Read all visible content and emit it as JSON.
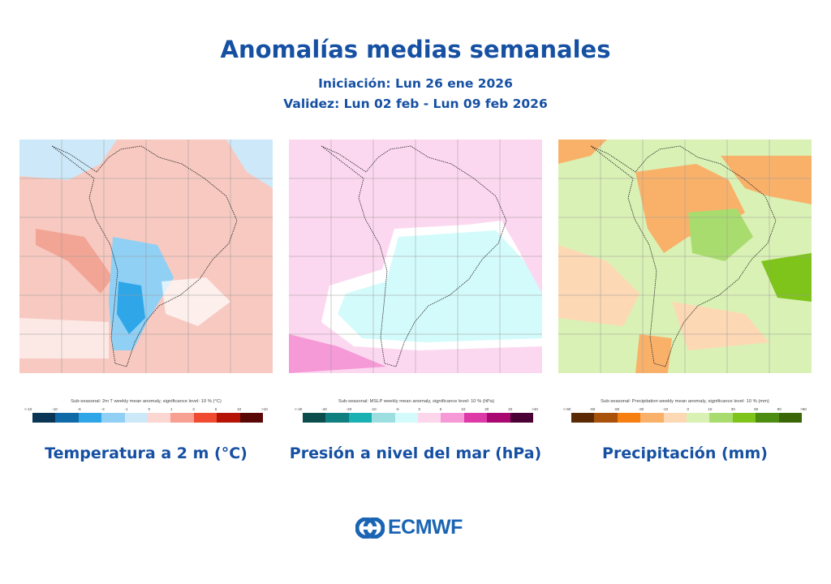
{
  "header": {
    "title": "Anomalías medias semanales",
    "initiation": "Iniciación: Lun 26 ene 2026",
    "validity": "Validez: Lun 02 feb - Lun 09 feb 2026"
  },
  "panels": [
    {
      "label": "Temperatura a 2 m (°C)",
      "colorbar_title": "Sub-seasonal: 2m T weekly mean anomaly, significance level: 10 % (°C)",
      "ticks": [
        "<-10",
        "-10",
        "-6",
        "-3",
        "-1",
        "0",
        "1",
        "3",
        "6",
        "10",
        ">10"
      ],
      "colors": [
        "#0a3554",
        "#0f6aa8",
        "#2fa6e8",
        "#90d0f5",
        "#cde9f9",
        "#fcd6d1",
        "#f7a092",
        "#f04a30",
        "#b41306",
        "#5a0805"
      ],
      "background": "#f7c9c0"
    },
    {
      "label": "Presión a nivel del mar (hPa)",
      "colorbar_title": "Sub-seasonal: MSLP weekly mean anomaly, significance level: 10 % (hPa)",
      "ticks": [
        "<-40",
        "-40",
        "-20",
        "-10",
        "-5",
        "0",
        "5",
        "10",
        "20",
        "40",
        ">40"
      ],
      "colors": [
        "#0b4d4d",
        "#0f7f80",
        "#19b1b2",
        "#9ddfe1",
        "#d4fbfb",
        "#fdd6ec",
        "#f59ad6",
        "#dd3aa8",
        "#a8086f",
        "#4a0035"
      ],
      "background": "#fcd8f0"
    },
    {
      "label": "Precipitación (mm)",
      "colorbar_title": "Sub-seasonal: Precipitation weekly mean anomaly, significance level: 10 % (mm)",
      "ticks": [
        "<-90",
        "-90",
        "-60",
        "-30",
        "-10",
        "0",
        "10",
        "30",
        "60",
        "90",
        ">90"
      ],
      "colors": [
        "#5a2a06",
        "#a8520b",
        "#f57f10",
        "#f9b16a",
        "#fdd8b4",
        "#daf1b5",
        "#a9dc6e",
        "#7ec41a",
        "#4c8c10",
        "#3a6608"
      ],
      "background": "#d6efb0"
    }
  ],
  "footer": {
    "logo_text": "ECMWF"
  }
}
